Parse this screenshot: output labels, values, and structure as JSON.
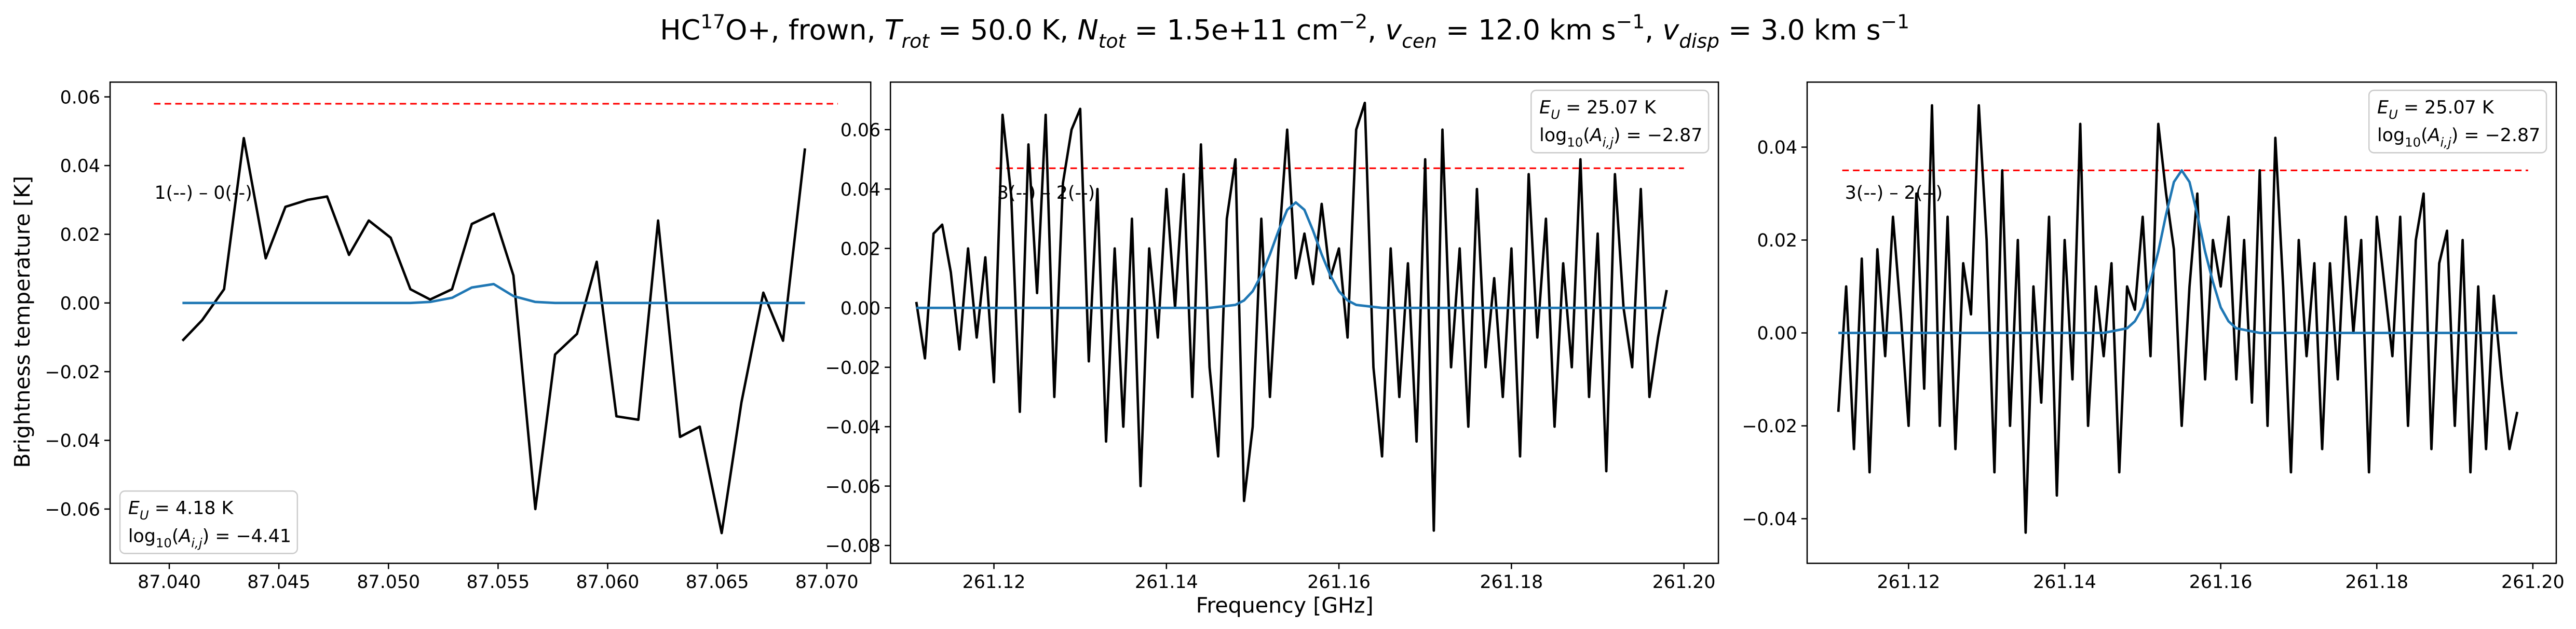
{
  "figure": {
    "title": [
      {
        "text": "HC"
      },
      {
        "text": "17",
        "style": "sup"
      },
      {
        "text": "O+, frown, "
      },
      {
        "text": "T",
        "style": "italic"
      },
      {
        "text": "rot",
        "style": "sub-italic"
      },
      {
        "text": " =  50.0 K, "
      },
      {
        "text": "N",
        "style": "italic"
      },
      {
        "text": "tot",
        "style": "sub-italic"
      },
      {
        "text": " =  1.5e+11 cm"
      },
      {
        "text": "−2",
        "style": "sup"
      },
      {
        "text": ", "
      },
      {
        "text": "v",
        "style": "italic"
      },
      {
        "text": "cen",
        "style": "sub-italic"
      },
      {
        "text": " =  12.0 km s"
      },
      {
        "text": "−1",
        "style": "sup"
      },
      {
        "text": ", "
      },
      {
        "text": "v",
        "style": "italic"
      },
      {
        "text": "disp",
        "style": "sub-italic"
      },
      {
        "text": " =  3.0 km s"
      },
      {
        "text": "−1",
        "style": "sup"
      }
    ],
    "xlabel": "Frequency [GHz]",
    "ylabel": "Brightness temperature [K]"
  },
  "chart_data": [
    {
      "type": "line",
      "xlim": [
        87.0373,
        87.072
      ],
      "ylim": [
        -0.0758,
        0.0643
      ],
      "xticks": [
        {
          "value": 87.04,
          "label": "87.040"
        },
        {
          "value": 87.045,
          "label": "87.045"
        },
        {
          "value": 87.05,
          "label": "87.050"
        },
        {
          "value": 87.055,
          "label": "87.055"
        },
        {
          "value": 87.06,
          "label": "87.060"
        },
        {
          "value": 87.065,
          "label": "87.065"
        },
        {
          "value": 87.07,
          "label": "87.070"
        }
      ],
      "yticks": [
        0.06,
        0.04,
        0.02,
        {
          "value": 0,
          "label": "0.00"
        },
        {
          "value": -0.02,
          "label": "−0.02"
        },
        {
          "value": -0.04,
          "label": "−0.04"
        },
        {
          "value": -0.06,
          "label": "−0.06"
        }
      ],
      "series": [
        {
          "color": "#000000",
          "x": [
            87.0406,
            87.0415,
            87.0425,
            87.0434,
            87.0444,
            87.0453,
            87.0463,
            87.0472,
            87.0482,
            87.0491,
            87.0501,
            87.051,
            87.0519,
            87.0529,
            87.0538,
            87.0548,
            87.0557,
            87.0567,
            87.0576,
            87.0586,
            87.0595,
            87.0604,
            87.0614,
            87.0623,
            87.0633,
            87.0642,
            87.0652,
            87.0661,
            87.0671,
            87.068,
            87.069
          ],
          "values": [
            -0.011,
            -0.005,
            0.004,
            0.048,
            0.013,
            0.028,
            0.03,
            0.031,
            0.014,
            0.024,
            0.019,
            0.004,
            0.001,
            0.004,
            0.023,
            0.026,
            0.008,
            -0.06,
            -0.015,
            -0.009,
            0.012,
            -0.033,
            -0.034,
            0.024,
            -0.039,
            -0.036,
            -0.067,
            -0.029,
            0.003,
            -0.011,
            0.045
          ]
        },
        {
          "color": "#1f77b4",
          "x": [
            87.0406,
            87.051,
            87.0519,
            87.0529,
            87.0538,
            87.0548,
            87.0557,
            87.0567,
            87.0576,
            87.069
          ],
          "values": [
            0,
            0,
            0.0003,
            0.0015,
            0.0045,
            0.0055,
            0.002,
            0.0003,
            0,
            0
          ]
        }
      ],
      "hlines": [
        {
          "y": 0.058,
          "xmin": 87.0393,
          "xmax": 87.0705,
          "color": "#ff0000"
        }
      ],
      "label": "1(--) – 0(--)",
      "info_box": {
        "corner": "lower left",
        "lines": [
          [
            {
              "text": "E",
              "style": "italic"
            },
            {
              "text": "U",
              "style": "sub-italic"
            },
            {
              "text": " = 4.18 K"
            }
          ],
          [
            {
              "text": "log"
            },
            {
              "text": "10",
              "style": "sub"
            },
            {
              "text": "("
            },
            {
              "text": "A",
              "style": "italic"
            },
            {
              "text": "i,j",
              "style": "sub-italic"
            },
            {
              "text": ") = −4.41"
            }
          ]
        ]
      }
    },
    {
      "type": "line",
      "xlim": [
        261.108,
        261.204
      ],
      "ylim": [
        -0.086,
        0.076
      ],
      "xticks": [
        261.12,
        261.14,
        261.16,
        261.18,
        {
          "value": 261.2,
          "label": "261.20"
        }
      ],
      "yticks": [
        0.06,
        0.04,
        0.02,
        {
          "value": 0,
          "label": "0.00"
        },
        {
          "value": -0.02,
          "label": "−0.02"
        },
        {
          "value": -0.04,
          "label": "−0.04"
        },
        {
          "value": -0.06,
          "label": "−0.06"
        },
        {
          "value": -0.08,
          "label": "−0.08"
        }
      ],
      "series": [
        {
          "color": "#000000",
          "x": [
            261.111,
            261.112,
            261.113,
            261.114,
            261.115,
            261.116,
            261.117,
            261.118,
            261.119,
            261.12,
            261.121,
            261.122,
            261.123,
            261.124,
            261.125,
            261.126,
            261.127,
            261.128,
            261.129,
            261.13,
            261.131,
            261.132,
            261.133,
            261.134,
            261.135,
            261.136,
            261.137,
            261.138,
            261.139,
            261.14,
            261.141,
            261.142,
            261.143,
            261.144,
            261.145,
            261.146,
            261.147,
            261.148,
            261.149,
            261.15,
            261.151,
            261.152,
            261.153,
            261.154,
            261.155,
            261.156,
            261.157,
            261.158,
            261.159,
            261.16,
            261.161,
            261.162,
            261.163,
            261.164,
            261.165,
            261.166,
            261.167,
            261.168,
            261.169,
            261.17,
            261.171,
            261.172,
            261.173,
            261.174,
            261.175,
            261.176,
            261.177,
            261.178,
            261.179,
            261.18,
            261.181,
            261.182,
            261.183,
            261.184,
            261.185,
            261.186,
            261.187,
            261.188,
            261.189,
            261.19,
            261.191,
            261.192,
            261.193,
            261.194,
            261.195,
            261.196,
            261.197,
            261.198
          ],
          "values": [
            0.002,
            -0.017,
            0.025,
            0.028,
            0.012,
            -0.014,
            0.02,
            -0.01,
            0.017,
            -0.025,
            0.065,
            0.038,
            -0.035,
            0.055,
            0.005,
            0.065,
            -0.03,
            0.042,
            0.06,
            0.067,
            -0.018,
            0.04,
            -0.045,
            0.02,
            -0.04,
            0.03,
            -0.06,
            0.02,
            -0.01,
            0.04,
            0.0,
            0.045,
            -0.03,
            0.055,
            -0.02,
            -0.05,
            0.03,
            0.05,
            -0.065,
            -0.04,
            0.03,
            -0.03,
            0.02,
            0.06,
            0.01,
            0.025,
            0.008,
            0.035,
            0.01,
            0.02,
            -0.01,
            0.06,
            0.069,
            -0.02,
            -0.05,
            0.02,
            -0.03,
            0.015,
            -0.045,
            0.05,
            -0.075,
            0.06,
            -0.02,
            0.02,
            -0.04,
            0.04,
            -0.02,
            0.01,
            -0.03,
            0.02,
            -0.05,
            0.045,
            -0.01,
            0.03,
            -0.04,
            0.015,
            -0.02,
            0.05,
            -0.03,
            0.025,
            -0.055,
            0.045,
            0.0,
            -0.02,
            0.04,
            -0.03,
            -0.01,
            0.006
          ]
        },
        {
          "color": "#1f77b4",
          "x": [
            261.111,
            261.145,
            261.148,
            261.149,
            261.15,
            261.151,
            261.152,
            261.153,
            261.154,
            261.155,
            261.156,
            261.157,
            261.158,
            261.159,
            261.16,
            261.161,
            261.162,
            261.165,
            261.198
          ],
          "values": [
            0,
            0,
            0.001,
            0.0025,
            0.0056,
            0.011,
            0.018,
            0.026,
            0.033,
            0.0355,
            0.033,
            0.026,
            0.018,
            0.011,
            0.0056,
            0.0025,
            0.001,
            0,
            0
          ]
        }
      ],
      "hlines": [
        {
          "y": 0.047,
          "xmin": 261.1202,
          "xmax": 261.2,
          "color": "#ff0000"
        }
      ],
      "label": "3(--) – 2(--)",
      "info_box": {
        "corner": "upper right",
        "lines": [
          [
            {
              "text": "E",
              "style": "italic"
            },
            {
              "text": "U",
              "style": "sub-italic"
            },
            {
              "text": " = 25.07 K"
            }
          ],
          [
            {
              "text": "log"
            },
            {
              "text": "10",
              "style": "sub"
            },
            {
              "text": "("
            },
            {
              "text": "A",
              "style": "italic"
            },
            {
              "text": "i,j",
              "style": "sub-italic"
            },
            {
              "text": ") = −2.87"
            }
          ]
        ]
      }
    },
    {
      "type": "line",
      "xlim": [
        261.107,
        261.203
      ],
      "ylim": [
        -0.0496,
        0.054
      ],
      "xticks": [
        261.12,
        261.14,
        261.16,
        261.18,
        {
          "value": 261.2,
          "label": "261.20"
        }
      ],
      "yticks": [
        0.04,
        0.02,
        {
          "value": 0,
          "label": "0.00"
        },
        {
          "value": -0.02,
          "label": "−0.02"
        },
        {
          "value": -0.04,
          "label": "−0.04"
        }
      ],
      "series": [
        {
          "color": "#000000",
          "x": [
            261.111,
            261.112,
            261.113,
            261.114,
            261.115,
            261.116,
            261.117,
            261.118,
            261.119,
            261.12,
            261.121,
            261.122,
            261.123,
            261.124,
            261.125,
            261.126,
            261.127,
            261.128,
            261.129,
            261.13,
            261.131,
            261.132,
            261.133,
            261.134,
            261.135,
            261.136,
            261.137,
            261.138,
            261.139,
            261.14,
            261.141,
            261.142,
            261.143,
            261.144,
            261.145,
            261.146,
            261.147,
            261.148,
            261.149,
            261.15,
            261.151,
            261.152,
            261.153,
            261.154,
            261.155,
            261.156,
            261.157,
            261.158,
            261.159,
            261.16,
            261.161,
            261.162,
            261.163,
            261.164,
            261.165,
            261.166,
            261.167,
            261.168,
            261.169,
            261.17,
            261.171,
            261.172,
            261.173,
            261.174,
            261.175,
            261.176,
            261.177,
            261.178,
            261.179,
            261.18,
            261.181,
            261.182,
            261.183,
            261.184,
            261.185,
            261.186,
            261.187,
            261.188,
            261.189,
            261.19,
            261.191,
            261.192,
            261.193,
            261.194,
            261.195,
            261.196,
            261.197,
            261.198
          ],
          "values": [
            -0.017,
            0.01,
            -0.025,
            0.016,
            -0.03,
            0.018,
            -0.005,
            0.025,
            0.004,
            -0.02,
            0.03,
            -0.012,
            0.049,
            -0.02,
            0.025,
            -0.025,
            0.015,
            0.004,
            0.049,
            0.02,
            -0.03,
            0.035,
            -0.02,
            0.02,
            -0.043,
            0.01,
            -0.015,
            0.025,
            -0.035,
            0.02,
            -0.01,
            0.045,
            -0.02,
            0.01,
            -0.005,
            0.015,
            -0.03,
            0.01,
            0.005,
            0.025,
            -0.005,
            0.045,
            0.03,
            0.018,
            -0.02,
            0.01,
            0.03,
            -0.01,
            0.02,
            0.01,
            0.025,
            -0.01,
            0.02,
            -0.015,
            0.035,
            -0.02,
            0.042,
            0.01,
            -0.03,
            0.02,
            -0.005,
            0.015,
            -0.025,
            0.015,
            -0.01,
            0.025,
            0.0,
            0.02,
            -0.03,
            0.025,
            0.01,
            -0.005,
            0.025,
            -0.02,
            0.02,
            0.03,
            -0.025,
            0.015,
            0.022,
            -0.02,
            0.02,
            -0.03,
            0.01,
            -0.025,
            0.008,
            -0.01,
            -0.025,
            -0.017
          ]
        },
        {
          "color": "#1f77b4",
          "x": [
            261.111,
            261.145,
            261.148,
            261.149,
            261.15,
            261.151,
            261.152,
            261.153,
            261.154,
            261.155,
            261.156,
            261.157,
            261.158,
            261.159,
            261.16,
            261.161,
            261.162,
            261.165,
            261.198
          ],
          "values": [
            0,
            0,
            0.001,
            0.0025,
            0.0055,
            0.011,
            0.0175,
            0.0255,
            0.0325,
            0.035,
            0.0325,
            0.0255,
            0.0175,
            0.011,
            0.0055,
            0.0025,
            0.001,
            0,
            0
          ]
        }
      ],
      "hlines": [
        {
          "y": 0.035,
          "xmin": 261.1115,
          "xmax": 261.1994,
          "color": "#ff0000"
        }
      ],
      "label": "3(--) – 2(--)",
      "info_box": {
        "corner": "upper right",
        "lines": [
          [
            {
              "text": "E",
              "style": "italic"
            },
            {
              "text": "U",
              "style": "sub-italic"
            },
            {
              "text": " = 25.07 K"
            }
          ],
          [
            {
              "text": "log"
            },
            {
              "text": "10",
              "style": "sub"
            },
            {
              "text": "("
            },
            {
              "text": "A",
              "style": "italic"
            },
            {
              "text": "i,j",
              "style": "sub-italic"
            },
            {
              "text": ") = −2.87"
            }
          ]
        ]
      }
    }
  ]
}
